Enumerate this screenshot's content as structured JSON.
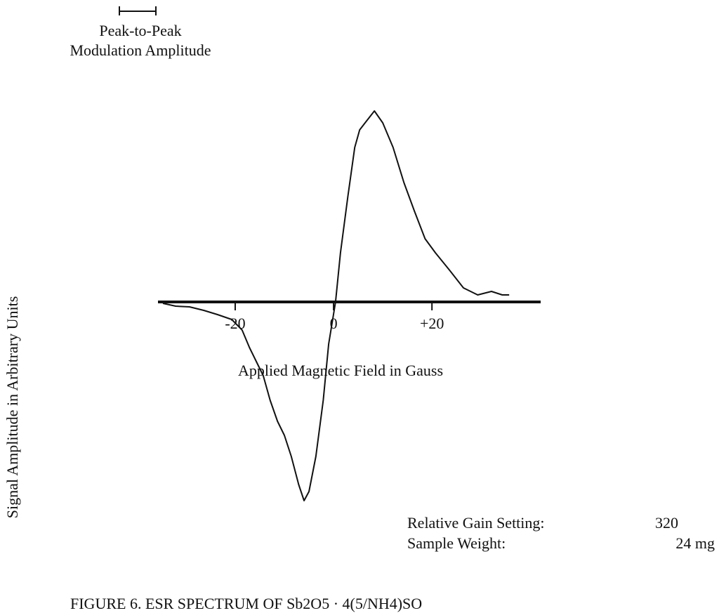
{
  "chart_data": {
    "type": "line",
    "annotations": [
      "Peak-to-Peak",
      "Modulation Amplitude",
      "Relative Gain Setting:",
      "320",
      "Sample Weight:",
      "24 mg"
    ],
    "xlabel": "Applied Magnetic Field in Gauss",
    "ylabel": "Signal Amplitude in Arbitrary Units",
    "caption": "FIGURE 6. ESR SPECTRUM OF Sb2O5 · 4(5/NH4)SO",
    "x": [
      -34.7,
      -32.1,
      -29.3,
      -26.4,
      -23.6,
      -20.7,
      -18.6,
      -17.1,
      -15.7,
      -14.3,
      -12.9,
      -11.4,
      -10,
      -8.6,
      -7.1,
      -6,
      -5,
      -3.6,
      -2.1,
      -1,
      0.4,
      1.4,
      2.9,
      4.3,
      5.3,
      6.4,
      8.3,
      10,
      12.1,
      14.3,
      16.4,
      18.6,
      20.7,
      23.6,
      26.4,
      29.3,
      32.1,
      34.3,
      35.7
    ],
    "series": [
      {
        "color": "#111111",
        "values": [
          -2,
          -6,
          -7,
          -12,
          -18,
          -25,
          -40,
          -65,
          -85,
          -105,
          -140,
          -170,
          -190,
          -220,
          -260,
          -283,
          -270,
          -220,
          -140,
          -60,
          0,
          70,
          150,
          220,
          245,
          255,
          272,
          255,
          220,
          170,
          130,
          90,
          70,
          45,
          20,
          10,
          15,
          10,
          10
        ]
      }
    ],
    "xlim": [
      -35.7,
      42.1
    ],
    "ylim": [
      -300,
      300
    ],
    "xticks": [
      -20,
      0,
      {
        "value": 20,
        "label": "+20"
      }
    ]
  }
}
